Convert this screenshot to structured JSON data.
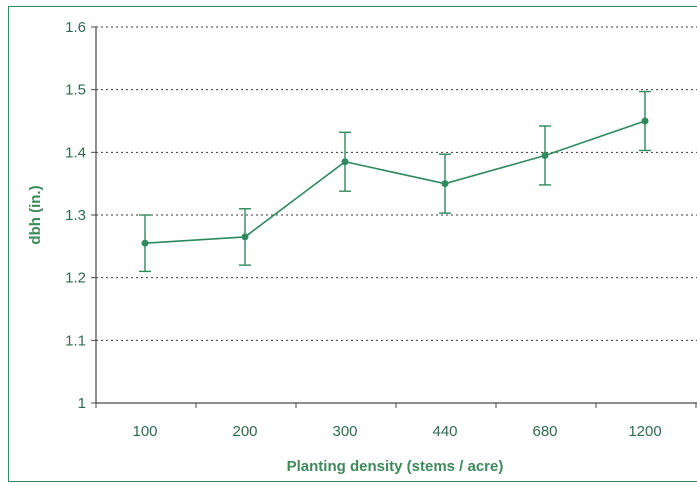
{
  "colors": {
    "frame": "#2e8b63",
    "series": "#2f8a5f",
    "axis": "#4a4a4a",
    "grid": "#3a3a3a",
    "tick_text": "#2f6b4f",
    "title_text": "#3f8a5a"
  },
  "chart_data": {
    "type": "line",
    "title": "",
    "xlabel": "Planting density (stems / acre)",
    "ylabel": "dbh (in.)",
    "categories": [
      "100",
      "200",
      "300",
      "440",
      "680",
      "1200"
    ],
    "series": [
      {
        "values": [
          1.255,
          1.265,
          1.385,
          1.35,
          1.395,
          1.45
        ],
        "error": [
          0.045,
          0.045,
          0.047,
          0.047,
          0.047,
          0.047
        ]
      }
    ],
    "ylim": [
      1,
      1.6
    ],
    "yticks": [
      "1",
      "1.1",
      "1.2",
      "1.3",
      "1.4",
      "1.5",
      "1.6"
    ],
    "grid": "horizontal dotted",
    "legend": "none"
  }
}
